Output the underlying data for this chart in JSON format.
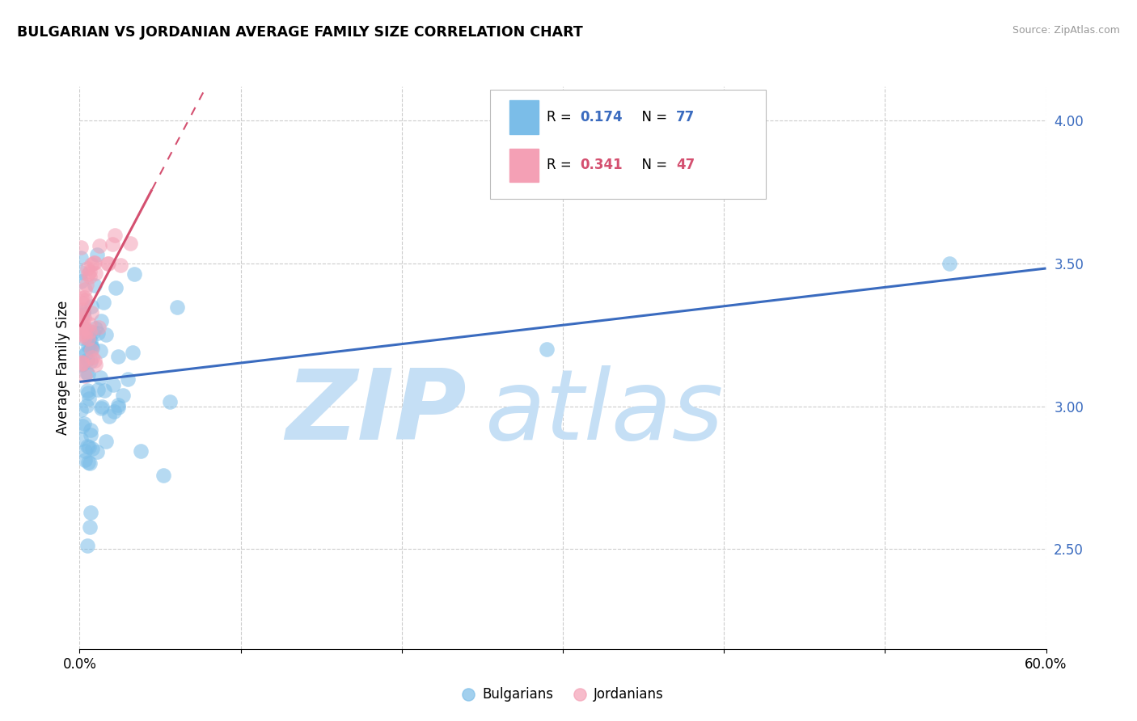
{
  "title": "BULGARIAN VS JORDANIAN AVERAGE FAMILY SIZE CORRELATION CHART",
  "source": "Source: ZipAtlas.com",
  "ylabel": "Average Family Size",
  "xmin": 0.0,
  "xmax": 0.6,
  "ymin": 2.15,
  "ymax": 4.12,
  "yticks": [
    2.5,
    3.0,
    3.5,
    4.0
  ],
  "bulgarian_color": "#7bbde8",
  "jordanian_color": "#f4a0b5",
  "bulgarian_line_color": "#3a6bbf",
  "jordanian_line_color": "#d45070",
  "legend_bg": "#ffffff",
  "legend_border": "#cccccc",
  "bulgarian_R": 0.174,
  "bulgarian_N": 77,
  "jordanian_R": 0.341,
  "jordanian_N": 47,
  "watermark_zip": "ZIP",
  "watermark_atlas": "atlas",
  "watermark_color": "#c5dff5",
  "title_fontsize": 12.5,
  "bg_color": "#ffffff",
  "grid_color": "#cccccc",
  "ytick_color": "#3a6bbf",
  "source_color": "#999999"
}
